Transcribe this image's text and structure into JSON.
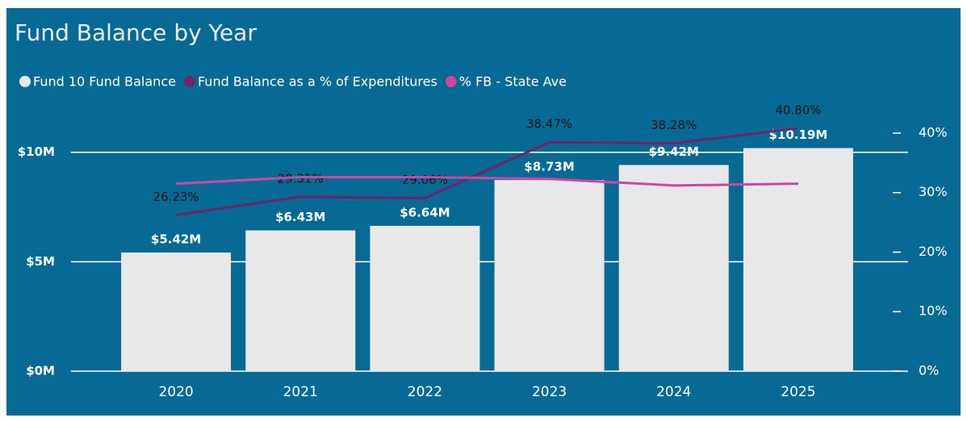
{
  "chart_data": {
    "type": "bar-line",
    "title": "Fund Balance by Year",
    "categories": [
      "2020",
      "2021",
      "2022",
      "2023",
      "2024",
      "2025"
    ],
    "series": [
      {
        "name": "Fund 10 Fund Balance",
        "type": "bar",
        "color": "#e8e8e8",
        "values": [
          5420000,
          6430000,
          6640000,
          8730000,
          9420000,
          10190000
        ],
        "value_labels": [
          "$5.42M",
          "$6.43M",
          "$6.64M",
          "$8.73M",
          "$9.42M",
          "$10.19M"
        ]
      },
      {
        "name": "Fund Balance as a % of Expenditures",
        "type": "line",
        "axis": "y2",
        "color": "#74226f",
        "values": [
          26.23,
          29.31,
          29.06,
          38.47,
          38.28,
          40.8
        ],
        "value_labels": [
          "26.23%",
          "29.31%",
          "29.06%",
          "38.47%",
          "38.28%",
          "40.80%"
        ]
      },
      {
        "name": "% FB - State Ave",
        "type": "line",
        "axis": "y2",
        "color": "#cf45a3",
        "values": [
          31.5,
          32.6,
          32.6,
          32.3,
          31.2,
          31.5
        ]
      }
    ],
    "ylim": [
      0,
      11500000
    ],
    "yticks": [
      {
        "value": 0,
        "label": "$0M"
      },
      {
        "value": 5000000,
        "label": "$5M"
      },
      {
        "value": 10000000,
        "label": "$10M"
      }
    ],
    "y2lim": [
      0,
      42.3
    ],
    "y2ticks": [
      {
        "value": 0,
        "label": "0%"
      },
      {
        "value": 10,
        "label": "10%"
      },
      {
        "value": 20,
        "label": "20%"
      },
      {
        "value": 30,
        "label": "30%"
      },
      {
        "value": 40,
        "label": "40%"
      }
    ],
    "grid": true,
    "legend": "top-left"
  }
}
